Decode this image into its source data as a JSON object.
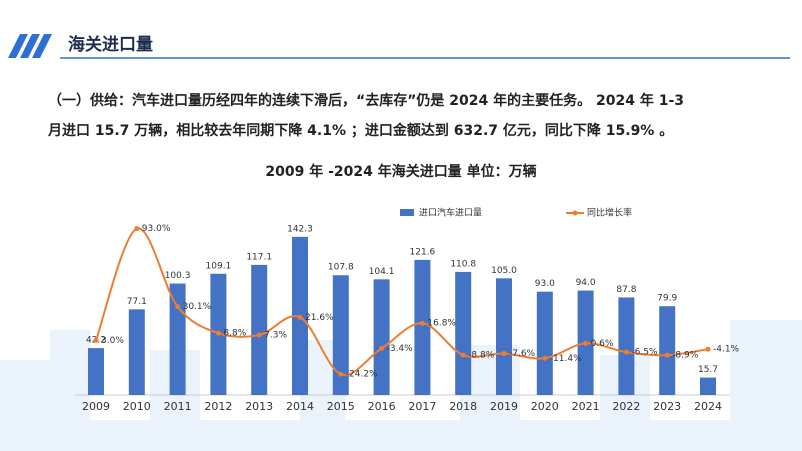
{
  "header": {
    "title": "海关进口量"
  },
  "paragraph": {
    "lines": [
      "（一）供给：汽车进口量历经四年的连续下滑后，“去库存”仍是 2024 年的主要任务。 2024 年 1-3",
      "月进口 15.7 万辆，相比较去年同期下降 4.1% ；进口金额达到 632.7 亿元，同比下降 15.9% 。"
    ]
  },
  "chart_data": {
    "type": "bar",
    "title": "2009 年 -2024 年海关进口量  单位：万辆",
    "categories": [
      "2009",
      "2010",
      "2011",
      "2012",
      "2013",
      "2014",
      "2015",
      "2016",
      "2017",
      "2018",
      "2019",
      "2020",
      "2021",
      "2022",
      "2023",
      "2024"
    ],
    "ylim": [
      0,
      162
    ],
    "y2lim": [
      -41,
      104
    ],
    "legend": "top",
    "series": [
      {
        "name": "进口汽车进口量",
        "type": "bar",
        "color": "#4472c4",
        "values": [
          42.2,
          77.1,
          100.3,
          109.1,
          117.1,
          142.3,
          107.8,
          104.1,
          121.6,
          110.8,
          105.0,
          93.0,
          94.0,
          87.8,
          79.9,
          15.7
        ],
        "value_labels": [
          "42.2",
          "77.1",
          "100.3",
          "109.1",
          "117.1",
          "142.3",
          "107.8",
          "104.1",
          "121.6",
          "110.8",
          "105.0",
          "93.0",
          "94.0",
          "87.8",
          "79.9",
          "15.7"
        ]
      },
      {
        "name": "同比增长率",
        "type": "line",
        "axis": "y2",
        "color": "#ed7d31",
        "values": [
          3.0,
          93.0,
          30.1,
          8.8,
          7.3,
          21.6,
          -24.2,
          -3.4,
          16.8,
          -8.8,
          -7.6,
          -11.4,
          0.6,
          -6.5,
          -8.9,
          -4.1
        ],
        "value_labels": [
          "3.0%",
          "93.0%",
          "30.1%",
          "8.8%",
          "7.3%",
          "21.6%",
          "-24.2%",
          "-3.4%",
          "16.8%",
          "-8.8%",
          "-7.6%",
          "-11.4%",
          "0.6%",
          "-6.5%",
          "-8.9%",
          "-4.1%"
        ]
      }
    ]
  }
}
